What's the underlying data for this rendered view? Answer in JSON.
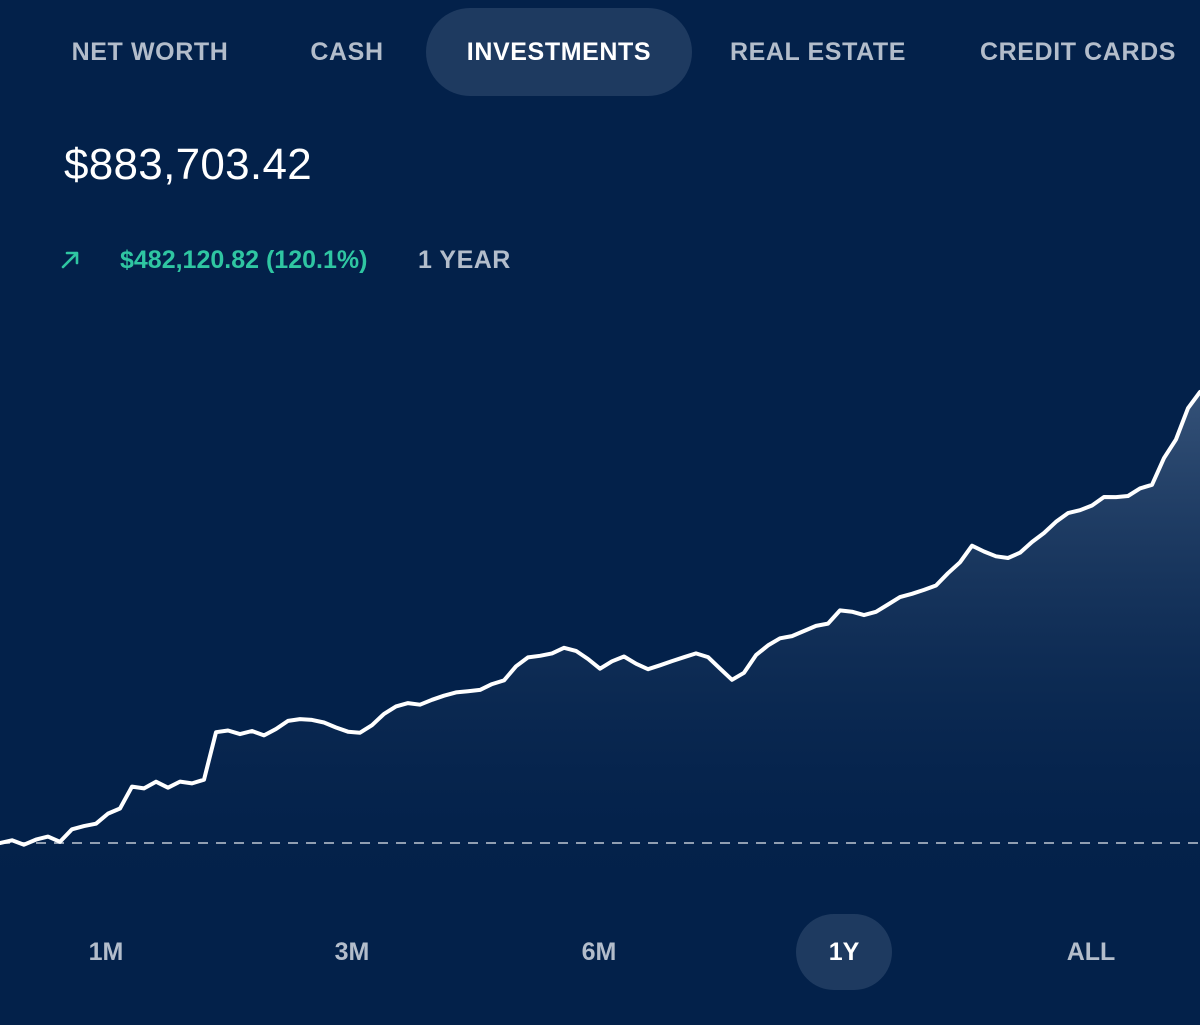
{
  "tabs": [
    {
      "label": "NET WORTH",
      "active": false
    },
    {
      "label": "CASH",
      "active": false
    },
    {
      "label": "INVESTMENTS",
      "active": true
    },
    {
      "label": "REAL ESTATE",
      "active": false
    },
    {
      "label": "CREDIT CARDS",
      "active": false
    }
  ],
  "summary": {
    "total": "$883,703.42",
    "change_icon": "arrow-up-right-icon",
    "change": "$482,120.82 (120.1%)",
    "period": "1 YEAR"
  },
  "ranges": [
    {
      "label": "1M",
      "active": false
    },
    {
      "label": "3M",
      "active": false
    },
    {
      "label": "6M",
      "active": false
    },
    {
      "label": "1Y",
      "active": true
    },
    {
      "label": "ALL",
      "active": false
    }
  ],
  "colors": {
    "background": "#03214A",
    "active_pill": "#1E3A60",
    "positive": "#2FC6A2",
    "muted_text": "#B3BDCB",
    "line": "#FFFFFF"
  },
  "chart_data": {
    "type": "area",
    "baseline_label": "",
    "y_start": 401583,
    "y_end": 883703,
    "x": [
      0,
      12,
      24,
      36,
      48,
      60,
      72,
      84,
      96,
      108,
      120,
      132,
      144,
      156,
      168,
      180,
      192,
      204,
      216,
      228,
      240,
      252,
      264,
      276,
      288,
      300,
      312,
      324,
      336,
      348,
      360,
      372,
      384,
      396,
      408,
      420,
      432,
      444,
      456,
      468,
      480,
      492,
      504,
      516,
      528,
      540,
      552,
      564,
      576,
      588,
      600,
      612,
      624,
      636,
      648,
      660,
      672,
      684,
      696,
      708,
      720,
      732,
      744,
      756,
      768,
      780,
      792,
      804,
      816,
      828,
      840,
      852,
      864,
      876,
      888,
      900,
      912,
      924,
      936,
      948,
      960,
      972,
      984,
      996,
      1008,
      1020,
      1032,
      1044,
      1056,
      1068,
      1080,
      1092,
      1104,
      1116,
      1128,
      1140,
      1152,
      1164,
      1176,
      1188,
      1200
    ],
    "values": [
      401583,
      404500,
      399800,
      405200,
      408400,
      402900,
      416200,
      419700,
      422200,
      433000,
      438500,
      461900,
      460000,
      467100,
      460700,
      467200,
      465300,
      469300,
      520000,
      521800,
      518000,
      521300,
      516600,
      523400,
      532100,
      534000,
      533200,
      530400,
      525000,
      520600,
      519500,
      527500,
      539600,
      547600,
      551100,
      549400,
      554700,
      559100,
      562600,
      563900,
      565300,
      571500,
      575400,
      590500,
      600000,
      601700,
      604300,
      610200,
      606900,
      598300,
      587900,
      595800,
      600900,
      593300,
      587400,
      591500,
      596000,
      600200,
      604300,
      600300,
      588000,
      576000,
      583500,
      602400,
      612800,
      620400,
      622800,
      628200,
      633700,
      636100,
      650200,
      648800,
      645200,
      648700,
      656500,
      664500,
      668000,
      672200,
      676800,
      690000,
      701700,
      719400,
      713200,
      708100,
      706300,
      711900,
      723400,
      733000,
      744900,
      754200,
      757300,
      762400,
      771500,
      771400,
      772500,
      780700,
      784500,
      813000,
      833000,
      866400,
      883703
    ]
  }
}
